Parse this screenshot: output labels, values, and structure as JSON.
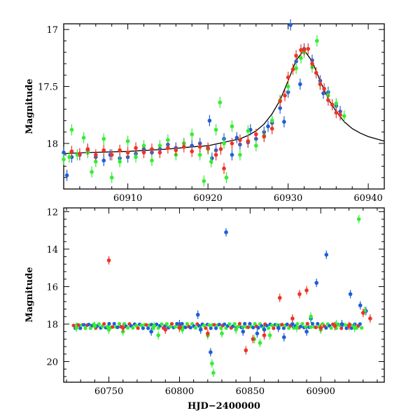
{
  "chart_data": [
    {
      "type": "scatter",
      "title": "",
      "xlabel": "",
      "ylabel": "Magnitude",
      "xlim": [
        60902,
        60942
      ],
      "ylim": [
        18.4,
        16.95
      ],
      "y_inverted": true,
      "xticks": [
        60910,
        60920,
        60930,
        60940
      ],
      "yticks": [
        17,
        17.5,
        18
      ],
      "ytick_labels": [
        "17",
        "17.5",
        "18"
      ],
      "colors": {
        "blue": "#1f5fd6",
        "green": "#33ee33",
        "red": "#ee3322",
        "model": "#000000"
      },
      "model_curve": {
        "x": [
          60902,
          60905,
          60910,
          60915,
          60918,
          60920,
          60922,
          60924,
          60925,
          60926,
          60927,
          60928,
          60929,
          60930,
          60931,
          60932,
          60933,
          60934,
          60935,
          60936,
          60937,
          60938,
          60939,
          60940,
          60941,
          60942
        ],
        "y": [
          18.09,
          18.08,
          18.07,
          18.05,
          18.03,
          18.02,
          17.99,
          17.96,
          17.93,
          17.89,
          17.83,
          17.74,
          17.62,
          17.45,
          17.27,
          17.18,
          17.28,
          17.45,
          17.61,
          17.72,
          17.81,
          17.87,
          17.91,
          17.94,
          17.96,
          17.98
        ]
      },
      "series": [
        {
          "color": "blue",
          "points": [
            [
              60902,
              18.08
            ],
            [
              60902.4,
              18.28
            ],
            [
              60903,
              18.12
            ],
            [
              60904,
              18.1
            ],
            [
              60905,
              18.06
            ],
            [
              60906,
              18.12
            ],
            [
              60907,
              18.15
            ],
            [
              60907.8,
              18.1
            ],
            [
              60909,
              18.13
            ],
            [
              60910,
              18.12
            ],
            [
              60911,
              18.09
            ],
            [
              60912,
              18.05
            ],
            [
              60913,
              18.08
            ],
            [
              60914,
              18.05
            ],
            [
              60915,
              18.01
            ],
            [
              60916,
              18.04
            ],
            [
              60917,
              18.0
            ],
            [
              60918,
              18.02
            ],
            [
              60919,
              18.0
            ],
            [
              60920,
              18.05
            ],
            [
              60920.2,
              17.8
            ],
            [
              60920.5,
              18.13
            ],
            [
              60921,
              18.06
            ],
            [
              60922,
              17.96
            ],
            [
              60923,
              18.1
            ],
            [
              60923.6,
              17.95
            ],
            [
              60924,
              18.01
            ],
            [
              60925,
              17.99
            ],
            [
              60925.3,
              17.88
            ],
            [
              60926,
              17.96
            ],
            [
              60927,
              17.9
            ],
            [
              60927.5,
              17.85
            ],
            [
              60928,
              17.82
            ],
            [
              60929,
              17.69
            ],
            [
              60929.5,
              17.81
            ],
            [
              60930,
              17.55
            ],
            [
              60930.3,
              16.96
            ],
            [
              60931,
              17.28
            ],
            [
              60931.5,
              17.48
            ],
            [
              60932,
              17.17
            ],
            [
              60933,
              17.27
            ],
            [
              60934,
              17.45
            ],
            [
              60934.4,
              17.56
            ],
            [
              60935,
              17.55
            ],
            [
              60936,
              17.67
            ],
            [
              60936.5,
              17.72
            ]
          ]
        },
        {
          "color": "green",
          "points": [
            [
              60902,
              18.14
            ],
            [
              60902.7,
              18.12
            ],
            [
              60903,
              17.88
            ],
            [
              60903.7,
              18.1
            ],
            [
              60904.5,
              17.95
            ],
            [
              60905,
              18.08
            ],
            [
              60905.5,
              18.25
            ],
            [
              60906,
              18.16
            ],
            [
              60907,
              17.96
            ],
            [
              60908,
              18.3
            ],
            [
              60909,
              18.16
            ],
            [
              60910,
              17.98
            ],
            [
              60911,
              18.12
            ],
            [
              60912,
              18.02
            ],
            [
              60913,
              18.15
            ],
            [
              60914,
              18.02
            ],
            [
              60915,
              17.97
            ],
            [
              60916,
              18.1
            ],
            [
              60917,
              18.0
            ],
            [
              60918,
              17.92
            ],
            [
              60919,
              18.1
            ],
            [
              60919.5,
              18.33
            ],
            [
              60920,
              18.05
            ],
            [
              60920.4,
              18.16
            ],
            [
              60921,
              17.88
            ],
            [
              60921.5,
              17.64
            ],
            [
              60922,
              18.0
            ],
            [
              60922.3,
              18.3
            ],
            [
              60923,
              17.85
            ],
            [
              60924,
              18.1
            ],
            [
              60925,
              17.89
            ],
            [
              60926,
              18.02
            ],
            [
              60927,
              17.93
            ],
            [
              60928,
              17.8
            ],
            [
              60929,
              17.62
            ],
            [
              60930,
              17.5
            ],
            [
              60931,
              17.34
            ],
            [
              60931.6,
              17.25
            ],
            [
              60932,
              17.2
            ],
            [
              60933,
              17.33
            ],
            [
              60933.6,
              17.1
            ],
            [
              60934,
              17.48
            ],
            [
              60935,
              17.58
            ],
            [
              60936,
              17.65
            ],
            [
              60937,
              17.76
            ]
          ]
        },
        {
          "color": "red",
          "points": [
            [
              60903,
              18.07
            ],
            [
              60904,
              18.09
            ],
            [
              60905,
              18.05
            ],
            [
              60906,
              18.1
            ],
            [
              60907,
              18.06
            ],
            [
              60908,
              18.1
            ],
            [
              60909,
              18.06
            ],
            [
              60910,
              18.08
            ],
            [
              60911,
              18.04
            ],
            [
              60912,
              18.08
            ],
            [
              60913,
              18.05
            ],
            [
              60914,
              18.08
            ],
            [
              60915,
              18.04
            ],
            [
              60916,
              18.06
            ],
            [
              60917,
              18.03
            ],
            [
              60918,
              18.07
            ],
            [
              60919,
              18.03
            ],
            [
              60920,
              18.04
            ],
            [
              60921,
              18.1
            ],
            [
              60921.6,
              18.05
            ],
            [
              60922,
              18.22
            ],
            [
              60923,
              18.0
            ],
            [
              60924,
              17.97
            ],
            [
              60925,
              17.98
            ],
            [
              60926,
              17.92
            ],
            [
              60927,
              17.94
            ],
            [
              60928,
              17.87
            ],
            [
              60929,
              17.63
            ],
            [
              60929.6,
              17.58
            ],
            [
              60930,
              17.42
            ],
            [
              60930.6,
              17.35
            ],
            [
              60931,
              17.23
            ],
            [
              60931.6,
              17.18
            ],
            [
              60932,
              17.18
            ],
            [
              60932.5,
              17.17
            ],
            [
              60933,
              17.3
            ],
            [
              60933.5,
              17.38
            ],
            [
              60934,
              17.48
            ],
            [
              60934.5,
              17.52
            ],
            [
              60935,
              17.62
            ],
            [
              60935.5,
              17.66
            ],
            [
              60936,
              17.73
            ],
            [
              60936.5,
              17.75
            ]
          ]
        }
      ]
    },
    {
      "type": "scatter",
      "title": "",
      "xlabel": "HJD−2400000",
      "ylabel": "Magnitude",
      "xlim": [
        60718,
        60945
      ],
      "ylim": [
        21.1,
        11.8
      ],
      "y_inverted": true,
      "xticks": [
        60750,
        60800,
        60850,
        60900
      ],
      "yticks": [
        12,
        14,
        16,
        18,
        20
      ],
      "ytick_labels": [
        "12",
        "14",
        "16",
        "18",
        "20"
      ],
      "colors": {
        "blue": "#1f5fd6",
        "green": "#33ee33",
        "red": "#ee3322",
        "model": "#000000"
      },
      "series": [
        {
          "color": "blue",
          "points": [
            [
              60780,
              18.4
            ],
            [
              60800,
              18.0
            ],
            [
              60813,
              17.5
            ],
            [
              60815,
              18.3
            ],
            [
              60822,
              19.5
            ],
            [
              60833,
              13.1
            ],
            [
              60845,
              18.4
            ],
            [
              60855,
              18.5
            ],
            [
              60860,
              18.3
            ],
            [
              60870,
              18.2
            ],
            [
              60874,
              18.7
            ],
            [
              60880,
              18.0
            ],
            [
              60890,
              18.4
            ],
            [
              60893,
              17.7
            ],
            [
              60897,
              15.8
            ],
            [
              60904,
              14.3
            ],
            [
              60915,
              18.0
            ],
            [
              60921,
              16.4
            ],
            [
              60928,
              17.0
            ],
            [
              60932,
              17.3
            ]
          ]
        },
        {
          "color": "green",
          "points": [
            [
              60727,
              18.2
            ],
            [
              60740,
              18.1
            ],
            [
              60750,
              18.3
            ],
            [
              60760,
              18.4
            ],
            [
              60782,
              18.1
            ],
            [
              60785,
              18.6
            ],
            [
              60802,
              18.3
            ],
            [
              60820,
              18.6
            ],
            [
              60823,
              20.1
            ],
            [
              60824,
              20.6
            ],
            [
              60830,
              18.5
            ],
            [
              60840,
              18.3
            ],
            [
              60853,
              18.8
            ],
            [
              60857,
              19.0
            ],
            [
              60864,
              18.6
            ],
            [
              60883,
              18.2
            ],
            [
              60893,
              17.6
            ],
            [
              60900,
              18.3
            ],
            [
              60911,
              18.0
            ],
            [
              60924,
              18.2
            ],
            [
              60927,
              12.4
            ],
            [
              60931,
              17.3
            ]
          ]
        },
        {
          "color": "red",
          "points": [
            [
              60750,
              14.6
            ],
            [
              60760,
              18.2
            ],
            [
              60790,
              18.3
            ],
            [
              60800,
              18.2
            ],
            [
              60820,
              18.5
            ],
            [
              60847,
              19.4
            ],
            [
              60852,
              18.8
            ],
            [
              60860,
              18.6
            ],
            [
              60871,
              16.6
            ],
            [
              60880,
              17.7
            ],
            [
              60885,
              16.4
            ],
            [
              60890,
              16.2
            ],
            [
              60900,
              18.2
            ],
            [
              60910,
              18.1
            ],
            [
              60920,
              18.1
            ],
            [
              60930,
              17.4
            ],
            [
              60935,
              17.7
            ]
          ]
        }
      ]
    }
  ]
}
